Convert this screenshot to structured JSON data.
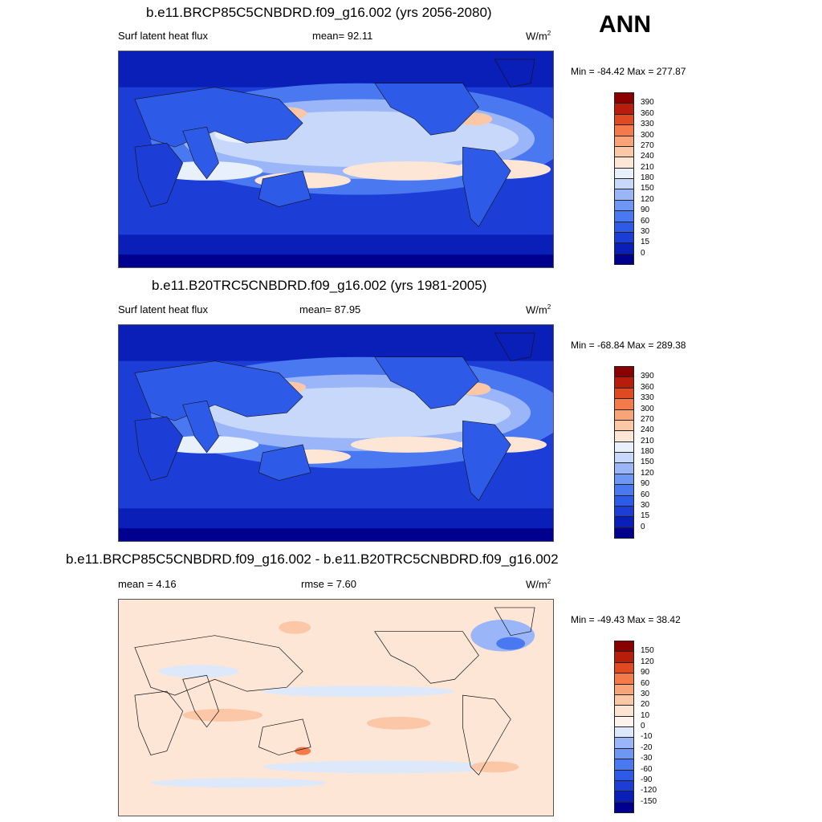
{
  "season": "ANN",
  "panels": [
    {
      "title": "b.e11.BRCP85C5CNBDRD.f09_g16.002 (yrs 2056-2080)",
      "left_label": "Surf latent heat flux",
      "stat_label": "mean=",
      "stat_value": "92.11",
      "units": "W/m",
      "units_sup": "2",
      "minmax": "Min = -84.42 Max = 277.87",
      "colorbar_ticks": [
        "390",
        "360",
        "330",
        "300",
        "270",
        "240",
        "210",
        "180",
        "150",
        "120",
        "90",
        "60",
        "30",
        "15",
        "0"
      ]
    },
    {
      "title": "b.e11.B20TRC5CNBDRD.f09_g16.002 (yrs 1981-2005)",
      "left_label": "Surf latent heat flux",
      "stat_label": "mean=",
      "stat_value": "87.95",
      "units": "W/m",
      "units_sup": "2",
      "minmax": "Min = -68.84 Max = 289.38",
      "colorbar_ticks": [
        "390",
        "360",
        "330",
        "300",
        "270",
        "240",
        "210",
        "180",
        "150",
        "120",
        "90",
        "60",
        "30",
        "15",
        "0"
      ]
    },
    {
      "title": "b.e11.BRCP85C5CNBDRD.f09_g16.002 - b.e11.B20TRC5CNBDRD.f09_g16.002",
      "left_label": "mean =   4.16",
      "stat_label": "rmse =",
      "stat_value": "7.60",
      "units": "W/m",
      "units_sup": "2",
      "minmax": "Min = -49.43 Max =  38.42",
      "colorbar_ticks": [
        "150",
        "120",
        "90",
        "60",
        "30",
        "20",
        "10",
        "0",
        "-10",
        "-20",
        "-30",
        "-60",
        "-90",
        "-120",
        "-150"
      ]
    }
  ],
  "chart_data": [
    {
      "type": "heatmap",
      "title": "b.e11.BRCP85C5CNBDRD.f09_g16.002 (yrs 2056-2080)",
      "variable": "Surf latent heat flux",
      "units": "W/m2",
      "mean": 92.11,
      "min": -84.42,
      "max": 277.87,
      "levels": [
        0,
        15,
        30,
        60,
        90,
        120,
        150,
        180,
        210,
        240,
        270,
        300,
        330,
        360,
        390
      ],
      "colors": [
        "#00008f",
        "#0a1fb8",
        "#1c3ed6",
        "#2e5ae8",
        "#4a78f0",
        "#6e96f5",
        "#9ab6f8",
        "#c7d8fb",
        "#e8f0fc",
        "#fde6d6",
        "#fbc7a6",
        "#f9a478",
        "#f47a4c",
        "#e04a22",
        "#b81c0a",
        "#8a0000"
      ]
    },
    {
      "type": "heatmap",
      "title": "b.e11.B20TRC5CNBDRD.f09_g16.002 (yrs 1981-2005)",
      "variable": "Surf latent heat flux",
      "units": "W/m2",
      "mean": 87.95,
      "min": -68.84,
      "max": 289.38,
      "levels": [
        0,
        15,
        30,
        60,
        90,
        120,
        150,
        180,
        210,
        240,
        270,
        300,
        330,
        360,
        390
      ],
      "colors": [
        "#00008f",
        "#0a1fb8",
        "#1c3ed6",
        "#2e5ae8",
        "#4a78f0",
        "#6e96f5",
        "#9ab6f8",
        "#c7d8fb",
        "#e8f0fc",
        "#fde6d6",
        "#fbc7a6",
        "#f9a478",
        "#f47a4c",
        "#e04a22",
        "#b81c0a",
        "#8a0000"
      ]
    },
    {
      "type": "heatmap",
      "title": "b.e11.BRCP85C5CNBDRD.f09_g16.002 - b.e11.B20TRC5CNBDRD.f09_g16.002",
      "units": "W/m2",
      "mean": 4.16,
      "rmse": 7.6,
      "min": -49.43,
      "max": 38.42,
      "levels": [
        -150,
        -120,
        -90,
        -60,
        -30,
        -20,
        -10,
        0,
        10,
        20,
        30,
        60,
        90,
        120,
        150
      ],
      "colors": [
        "#00008f",
        "#0a1fb8",
        "#1c3ed6",
        "#2e5ae8",
        "#4a78f0",
        "#6e96f5",
        "#9ab6f8",
        "#dde8fb",
        "#fdf2ec",
        "#fde3d2",
        "#fbc7a6",
        "#f9a478",
        "#f47a4c",
        "#e04a22",
        "#b81c0a",
        "#8a0000"
      ]
    }
  ]
}
